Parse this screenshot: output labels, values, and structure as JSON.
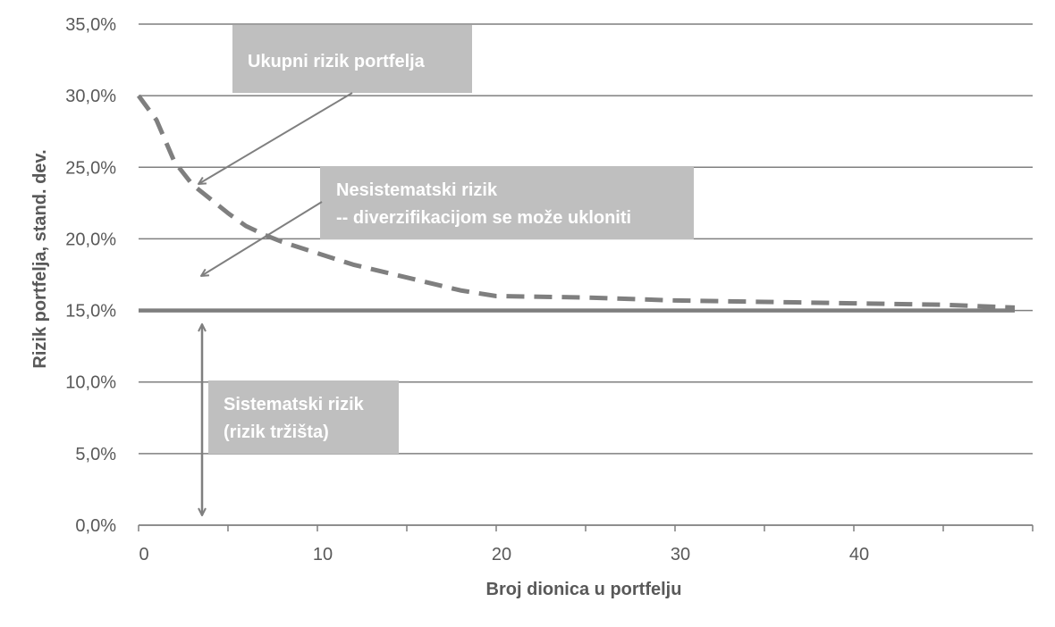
{
  "chart_data": {
    "type": "line",
    "xlabel": "Broj dionica u portfelju",
    "ylabel": "Rizik portfelja, stand. dev.",
    "xlim": [
      0,
      50
    ],
    "ylim": [
      0,
      0.35
    ],
    "x_ticks": [
      0,
      10,
      20,
      30,
      40
    ],
    "x_tick_labels": [
      "0",
      "10",
      "20",
      "30",
      "40"
    ],
    "y_ticks": [
      0,
      0.05,
      0.1,
      0.15,
      0.2,
      0.25,
      0.3,
      0.35
    ],
    "y_tick_labels": [
      "0,0%",
      "5,0%",
      "10,0%",
      "15,0%",
      "20,0%",
      "25,0%",
      "30,0%",
      "35,0%"
    ],
    "grid": true,
    "series": [
      {
        "style": "dashed",
        "color": "#7f7f7f",
        "x": [
          0,
          1,
          2,
          3,
          4,
          5,
          6,
          7,
          8,
          10,
          12,
          15,
          18,
          20,
          25,
          30,
          35,
          40,
          45,
          49
        ],
        "y": [
          0.3,
          0.283,
          0.254,
          0.238,
          0.228,
          0.218,
          0.209,
          0.203,
          0.198,
          0.19,
          0.182,
          0.173,
          0.164,
          0.16,
          0.159,
          0.157,
          0.156,
          0.155,
          0.154,
          0.152
        ]
      },
      {
        "style": "solid",
        "color": "#7f7f7f",
        "x": [
          0,
          49
        ],
        "y": [
          0.15,
          0.15
        ]
      }
    ],
    "annotations": [
      {
        "id": "total",
        "lines": [
          "Ukupni rizik portfelja"
        ]
      },
      {
        "id": "unsystematic",
        "lines": [
          "Nesistematski rizik",
          "-- diverzifikacijom se može ukloniti"
        ]
      },
      {
        "id": "systematic",
        "lines": [
          "Sistematski rizik",
          "(rizik tržišta)"
        ]
      }
    ],
    "colors": {
      "grid": "#7f7f7f",
      "box": "#bfbfbf",
      "box_text": "#ffffff",
      "text": "#595959",
      "line": "#7f7f7f"
    }
  }
}
